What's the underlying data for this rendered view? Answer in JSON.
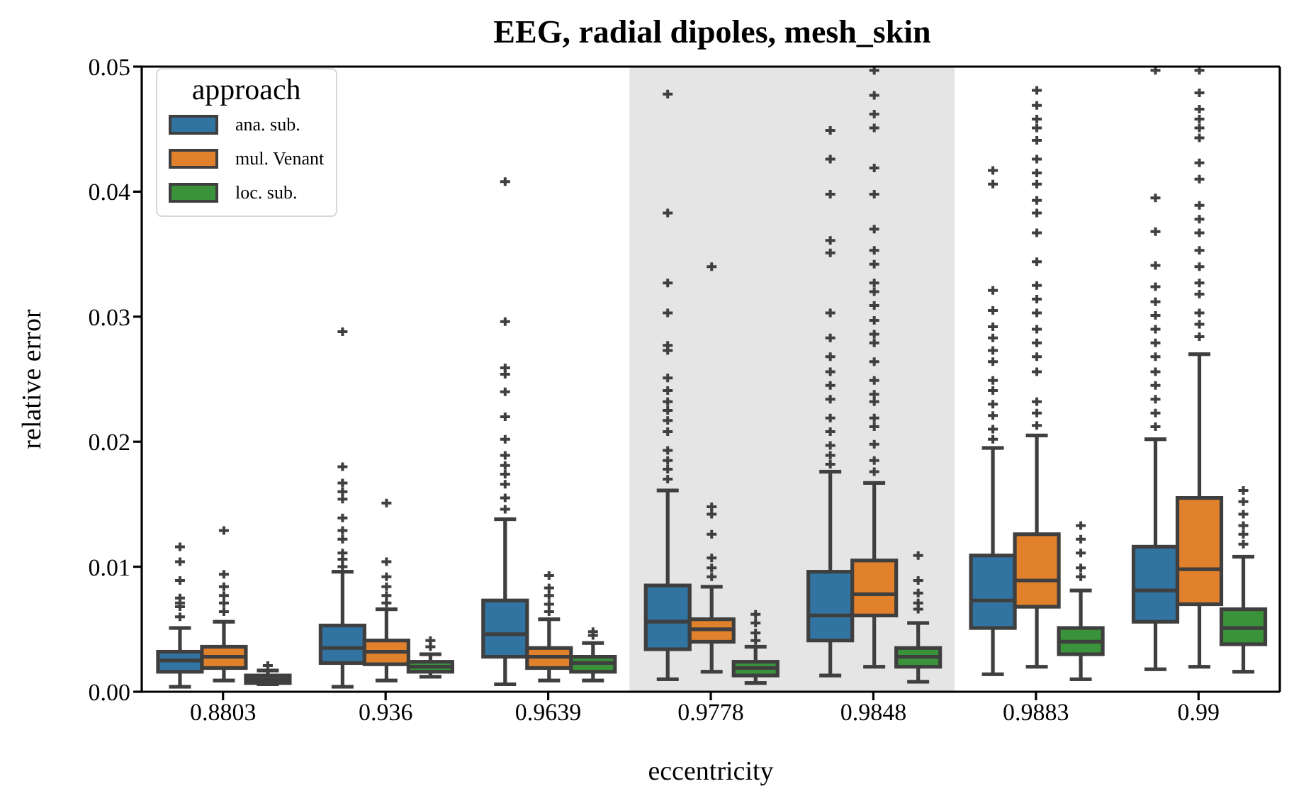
{
  "chart_data": {
    "type": "box",
    "title": "EEG, radial dipoles, mesh_skin",
    "xlabel": "eccentricity",
    "ylabel": "relative error",
    "legend_title": "approach",
    "legend": "top left",
    "grid": false,
    "categories": [
      "0.8803",
      "0.936",
      "0.9639",
      "0.9778",
      "0.9848",
      "0.9883",
      "0.99"
    ],
    "ylim": [
      0,
      0.05
    ],
    "yticks": [
      {
        "value": 0,
        "label": "0.00"
      },
      0.01,
      0.02,
      0.03,
      0.04,
      0.05
    ],
    "bands": [
      {
        "axis": "x",
        "from": "0.9778",
        "to": "0.9848",
        "color": "#e5e5e5"
      }
    ],
    "series": [
      {
        "name": "ana. sub.",
        "color": "#3274a1",
        "boxes": [
          {
            "low": 0.0004,
            "q1": 0.0016,
            "median": 0.0025,
            "q3": 0.0032,
            "high": 0.0051,
            "outliers": [
              0.0116,
              0.0104,
              0.0089,
              0.0075,
              0.0071,
              0.0068,
              0.006
            ]
          },
          {
            "low": 0.0004,
            "q1": 0.0023,
            "median": 0.0035,
            "q3": 0.0053,
            "high": 0.0096,
            "outliers": [
              0.0288,
              0.018,
              0.0167,
              0.016,
              0.0154,
              0.0139,
              0.0129,
              0.0122,
              0.0111,
              0.0106,
              0.01
            ]
          },
          {
            "low": 0.0006,
            "q1": 0.0028,
            "median": 0.0046,
            "q3": 0.0073,
            "high": 0.0138,
            "outliers": [
              0.0408,
              0.0296,
              0.0259,
              0.0254,
              0.024,
              0.022,
              0.0202,
              0.0189,
              0.0181,
              0.0174,
              0.0166,
              0.0155,
              0.0146
            ]
          },
          {
            "low": 0.001,
            "q1": 0.0034,
            "median": 0.0056,
            "q3": 0.0085,
            "high": 0.0161,
            "outliers": [
              0.0478,
              0.0383,
              0.0327,
              0.0303,
              0.0277,
              0.0273,
              0.0251,
              0.0241,
              0.0232,
              0.0225,
              0.0217,
              0.0208,
              0.0193,
              0.0185,
              0.0178,
              0.017
            ]
          },
          {
            "low": 0.0013,
            "q1": 0.0041,
            "median": 0.0061,
            "q3": 0.0096,
            "high": 0.0176,
            "outliers": [
              0.0449,
              0.0426,
              0.0398,
              0.0361,
              0.0351,
              0.0303,
              0.0283,
              0.0268,
              0.0256,
              0.0245,
              0.0234,
              0.0219,
              0.0208,
              0.0197,
              0.0189,
              0.0182
            ]
          },
          {
            "low": 0.0014,
            "q1": 0.0051,
            "median": 0.0073,
            "q3": 0.0109,
            "high": 0.0195,
            "outliers": [
              0.0417,
              0.0406,
              0.0321,
              0.0305,
              0.0292,
              0.0283,
              0.0273,
              0.0264,
              0.0249,
              0.0241,
              0.023,
              0.0221,
              0.021,
              0.0202
            ]
          },
          {
            "low": 0.0018,
            "q1": 0.0056,
            "median": 0.0081,
            "q3": 0.0116,
            "high": 0.0202,
            "outliers": [
              0.0497,
              0.0395,
              0.0368,
              0.0341,
              0.0324,
              0.0312,
              0.0301,
              0.029,
              0.0279,
              0.0268,
              0.0256,
              0.0245,
              0.0234,
              0.0223,
              0.0212
            ]
          }
        ]
      },
      {
        "name": "mul. Venant",
        "color": "#e1812c",
        "boxes": [
          {
            "low": 0.0009,
            "q1": 0.0019,
            "median": 0.0028,
            "q3": 0.0036,
            "high": 0.0056,
            "outliers": [
              0.0129,
              0.0094,
              0.0084,
              0.0077,
              0.0071,
              0.0064
            ]
          },
          {
            "low": 0.0009,
            "q1": 0.0022,
            "median": 0.0032,
            "q3": 0.0041,
            "high": 0.0066,
            "outliers": [
              0.0151,
              0.0104,
              0.0092,
              0.0084,
              0.0077,
              0.0071
            ]
          },
          {
            "low": 0.0009,
            "q1": 0.0019,
            "median": 0.0028,
            "q3": 0.0035,
            "high": 0.0058,
            "outliers": [
              0.0093,
              0.0083,
              0.0077,
              0.007,
              0.0064
            ]
          },
          {
            "low": 0.0016,
            "q1": 0.004,
            "median": 0.005,
            "q3": 0.0058,
            "high": 0.0084,
            "outliers": [
              0.034,
              0.0148,
              0.0142,
              0.0126,
              0.0107,
              0.0099,
              0.0092
            ]
          },
          {
            "low": 0.002,
            "q1": 0.0061,
            "median": 0.0078,
            "q3": 0.0105,
            "high": 0.0167,
            "outliers": [
              0.0497,
              0.0477,
              0.0462,
              0.0451,
              0.0419,
              0.0398,
              0.037,
              0.0353,
              0.0342,
              0.0327,
              0.032,
              0.0309,
              0.0297,
              0.0286,
              0.0279,
              0.0264,
              0.0249,
              0.0238,
              0.0232,
              0.0219,
              0.0212,
              0.0198,
              0.0185,
              0.0176
            ]
          },
          {
            "low": 0.002,
            "q1": 0.0068,
            "median": 0.0089,
            "q3": 0.0126,
            "high": 0.0205,
            "outliers": [
              0.0481,
              0.0469,
              0.0458,
              0.0451,
              0.0441,
              0.0426,
              0.0415,
              0.0406,
              0.0393,
              0.0383,
              0.0367,
              0.0344,
              0.0325,
              0.0314,
              0.0303,
              0.029,
              0.0279,
              0.0268,
              0.0256,
              0.0232,
              0.0223,
              0.0213
            ]
          },
          {
            "low": 0.002,
            "q1": 0.007,
            "median": 0.0098,
            "q3": 0.0155,
            "high": 0.027,
            "outliers": [
              0.0497,
              0.0479,
              0.0466,
              0.0458,
              0.0451,
              0.0443,
              0.0423,
              0.041,
              0.0389,
              0.0378,
              0.0367,
              0.0353,
              0.034,
              0.0327,
              0.0318,
              0.0303,
              0.0294,
              0.0284
            ]
          }
        ]
      },
      {
        "name": "loc. sub.",
        "color": "#3a923a",
        "boxes": [
          {
            "low": 0.0006,
            "q1": 0.0007,
            "median": 0.001,
            "q3": 0.0013,
            "high": 0.0017,
            "outliers": [
              0.0021
            ]
          },
          {
            "low": 0.0012,
            "q1": 0.0016,
            "median": 0.002,
            "q3": 0.0024,
            "high": 0.003,
            "outliers": [
              0.0041,
              0.0036
            ]
          },
          {
            "low": 0.0009,
            "q1": 0.0016,
            "median": 0.0023,
            "q3": 0.0028,
            "high": 0.0039,
            "outliers": [
              0.0048,
              0.0045
            ]
          },
          {
            "low": 0.0007,
            "q1": 0.0013,
            "median": 0.0019,
            "q3": 0.0024,
            "high": 0.0036,
            "outliers": [
              0.0062,
              0.0055,
              0.0047,
              0.0041
            ]
          },
          {
            "low": 0.0008,
            "q1": 0.002,
            "median": 0.0028,
            "q3": 0.0035,
            "high": 0.0055,
            "outliers": [
              0.0109,
              0.0089,
              0.0079,
              0.0071,
              0.0066
            ]
          },
          {
            "low": 0.001,
            "q1": 0.003,
            "median": 0.004,
            "q3": 0.0051,
            "high": 0.0081,
            "outliers": [
              0.0133,
              0.0122,
              0.0111,
              0.0099,
              0.0092
            ]
          },
          {
            "low": 0.0016,
            "q1": 0.0038,
            "median": 0.0051,
            "q3": 0.0066,
            "high": 0.0108,
            "outliers": [
              0.0161,
              0.0152,
              0.0142,
              0.0133,
              0.0126,
              0.0118
            ]
          }
        ]
      }
    ]
  }
}
